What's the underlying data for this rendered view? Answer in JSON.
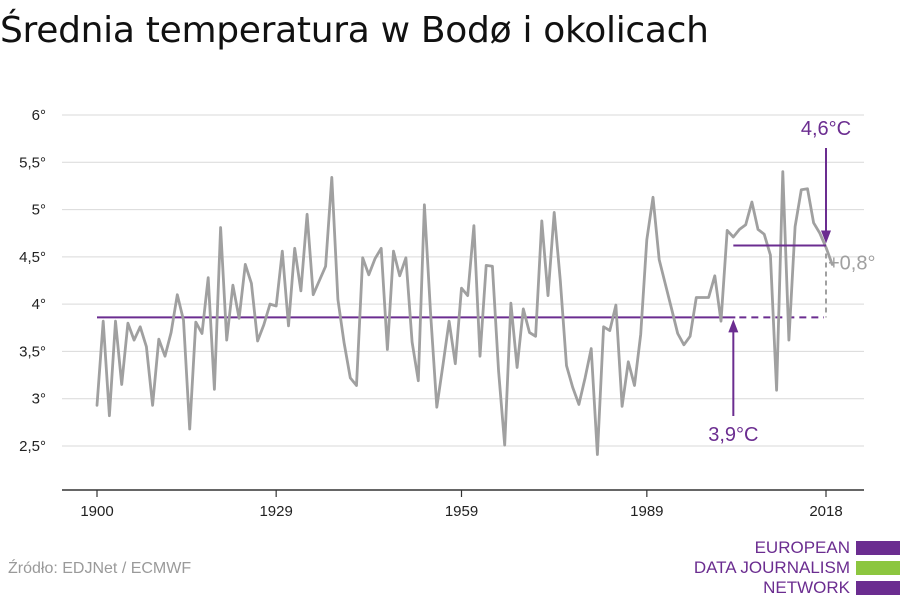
{
  "title": "Średnia temperatura w Bodø i okolicach",
  "source": "Źródło: EDJNet / ECMWF",
  "logo": {
    "lines": [
      "EUROPEAN",
      "DATA JOURNALISM",
      "NETWORK"
    ],
    "colors": [
      "#6b2d90",
      "#8cc63f",
      "#6b2d90"
    ]
  },
  "colors": {
    "series": "#a0a0a0",
    "accent": "#6b2d90",
    "grid": "#d9d9d9",
    "axis": "#333333"
  },
  "chart_data": {
    "type": "line",
    "title": "Średnia temperatura w Bodø i okolicach",
    "xlabel": "",
    "ylabel": "",
    "xlim": [
      1900,
      2019
    ],
    "ylim": [
      2.0,
      6.0
    ],
    "x_ticks": [
      1900,
      1929,
      1959,
      1989,
      2018
    ],
    "x_tick_labels": [
      "1900",
      "1929",
      "1959",
      "1989",
      "2018"
    ],
    "y_ticks": [
      2.5,
      3,
      3.5,
      4,
      4.5,
      5,
      5.5,
      6
    ],
    "y_tick_labels": [
      "2,5°",
      "3°",
      "3,5°",
      "4°",
      "4,5°",
      "5°",
      "5,5°",
      "6°"
    ],
    "grid": true,
    "series": [
      {
        "x": [
          1900,
          1901,
          1902,
          1903,
          1904,
          1905,
          1906,
          1907,
          1908,
          1909,
          1910,
          1911,
          1912,
          1913,
          1914,
          1915,
          1916,
          1917,
          1918,
          1919,
          1920,
          1921,
          1922,
          1923,
          1924,
          1925,
          1926,
          1927,
          1928,
          1929,
          1930,
          1931,
          1932,
          1933,
          1934,
          1935,
          1936,
          1937,
          1938,
          1939,
          1940,
          1941,
          1942,
          1943,
          1944,
          1945,
          1946,
          1947,
          1948,
          1949,
          1950,
          1951,
          1952,
          1953,
          1954,
          1955,
          1956,
          1957,
          1958,
          1959,
          1960,
          1961,
          1962,
          1963,
          1964,
          1965,
          1966,
          1967,
          1968,
          1969,
          1970,
          1971,
          1972,
          1973,
          1974,
          1975,
          1976,
          1977,
          1978,
          1979,
          1980,
          1981,
          1982,
          1983,
          1984,
          1985,
          1986,
          1987,
          1988,
          1989,
          1990,
          1991,
          1992,
          1993,
          1994,
          1995,
          1996,
          1997,
          1998,
          1999,
          2000,
          2001,
          2002,
          2003,
          2004,
          2005,
          2006,
          2007,
          2008,
          2009,
          2010,
          2011,
          2012,
          2013,
          2014,
          2015,
          2016,
          2017,
          2018,
          2019
        ],
        "values": [
          2.93,
          3.82,
          2.82,
          3.82,
          3.15,
          3.8,
          3.62,
          3.76,
          3.55,
          2.93,
          3.63,
          3.45,
          3.7,
          4.1,
          3.83,
          2.68,
          3.81,
          3.69,
          4.28,
          3.1,
          4.81,
          3.62,
          4.2,
          3.85,
          4.42,
          4.22,
          3.61,
          3.78,
          4.0,
          3.98,
          4.56,
          3.77,
          4.59,
          4.14,
          4.95,
          4.1,
          4.25,
          4.4,
          5.34,
          4.05,
          3.59,
          3.22,
          3.14,
          4.49,
          4.31,
          4.48,
          4.59,
          3.52,
          4.56,
          4.3,
          4.49,
          3.6,
          3.19,
          5.05,
          3.9,
          2.91,
          3.36,
          3.82,
          3.37,
          4.17,
          4.09,
          4.83,
          3.45,
          4.41,
          4.4,
          3.29,
          2.51,
          4.01,
          3.33,
          3.95,
          3.7,
          3.66,
          4.88,
          4.09,
          4.97,
          4.25,
          3.35,
          3.12,
          2.94,
          3.22,
          3.53,
          2.41,
          3.76,
          3.72,
          3.99,
          2.92,
          3.39,
          3.14,
          3.68,
          4.68,
          5.13,
          4.47,
          4.21,
          3.95,
          3.69,
          3.57,
          3.66,
          4.07,
          4.07,
          4.07,
          4.3,
          3.82,
          4.78,
          4.71,
          4.79,
          4.84,
          5.08,
          4.79,
          4.74,
          4.52,
          3.09,
          5.4,
          3.62,
          4.82,
          5.21,
          5.22,
          4.86,
          4.75,
          4.6,
          4.42
        ]
      }
    ],
    "annotations": {
      "baseline": {
        "value": 3.86,
        "from": 1900,
        "to": 2003,
        "label": "3,9°C",
        "arrow_year": 2003
      },
      "recent": {
        "value": 4.62,
        "from": 2003,
        "to": 2018,
        "label": "4,6°C",
        "arrow_year": 2018
      },
      "difference": {
        "label": "+0,8°",
        "at_year": 2018
      }
    }
  }
}
